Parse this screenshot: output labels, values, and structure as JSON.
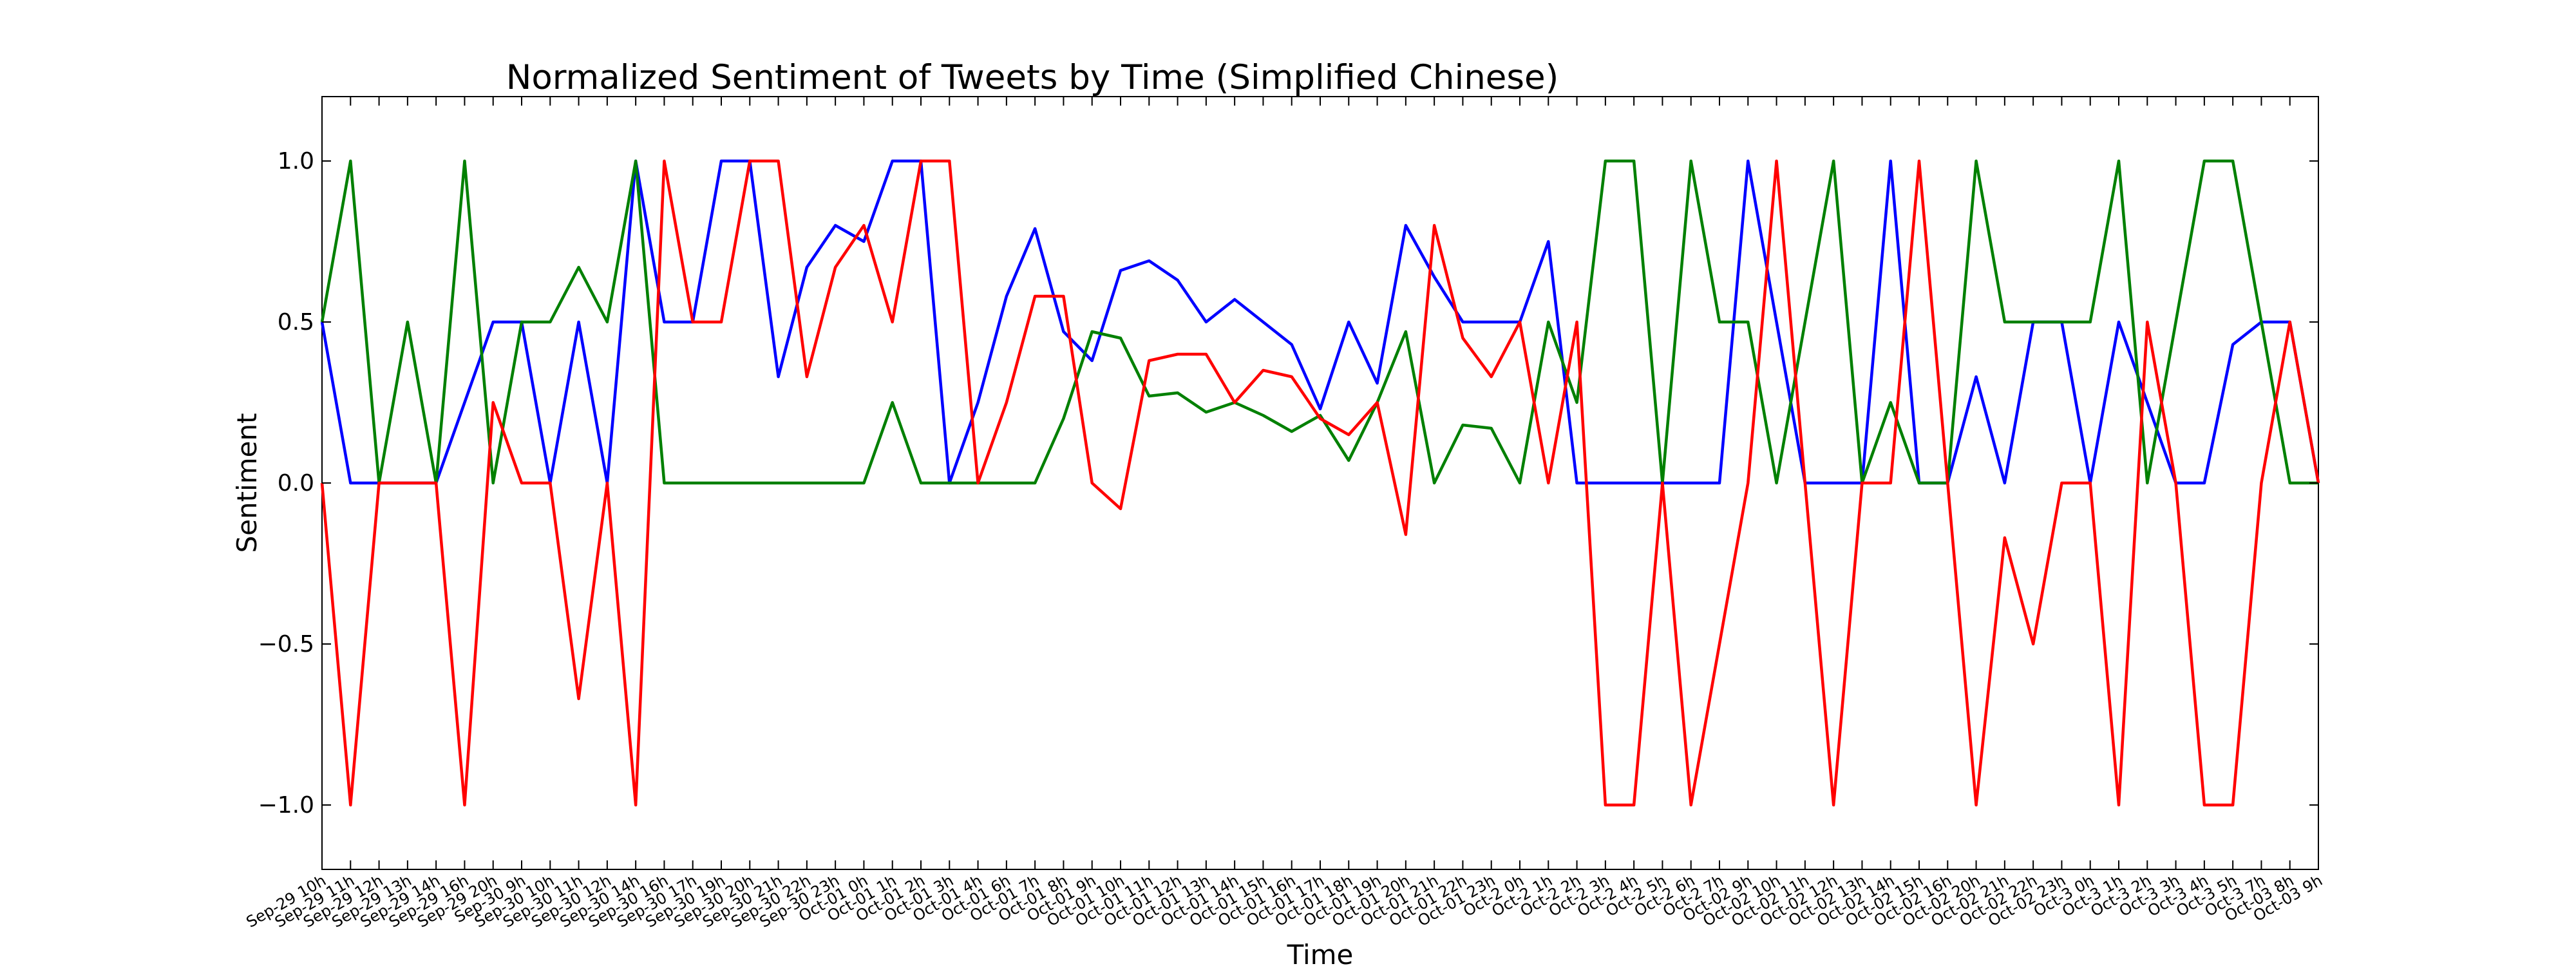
{
  "chart_data": {
    "type": "line",
    "title": "Normalized Sentiment of Tweets by Time (Simplified Chinese)",
    "xlabel": "Time",
    "ylabel": "Sentiment",
    "ylim": [
      -1.2,
      1.2
    ],
    "yticks": [
      -1.0,
      -0.5,
      0.0,
      0.5,
      1.0
    ],
    "ytick_labels": [
      "−1.0",
      "−0.5",
      "0.0",
      "0.5",
      "1.0"
    ],
    "grid": false,
    "categories": [
      "Sep-29 10h",
      "Sep-29 11h",
      "Sep-29 12h",
      "Sep-29 13h",
      "Sep-29 14h",
      "Sep-29 16h",
      "Sep-29 20h",
      "Sep-30 9h",
      "Sep-30 10h",
      "Sep-30 11h",
      "Sep-30 12h",
      "Sep-30 14h",
      "Sep-30 16h",
      "Sep-30 17h",
      "Sep-30 19h",
      "Sep-30 20h",
      "Sep-30 21h",
      "Sep-30 22h",
      "Sep-30 23h",
      "Oct-01 0h",
      "Oct-01 1h",
      "Oct-01 2h",
      "Oct-01 3h",
      "Oct-01 4h",
      "Oct-01 6h",
      "Oct-01 7h",
      "Oct-01 8h",
      "Oct-01 9h",
      "Oct-01 10h",
      "Oct-01 11h",
      "Oct-01 12h",
      "Oct-01 13h",
      "Oct-01 14h",
      "Oct-01 15h",
      "Oct-01 16h",
      "Oct-01 17h",
      "Oct-01 18h",
      "Oct-01 19h",
      "Oct-01 20h",
      "Oct-01 21h",
      "Oct-01 22h",
      "Oct-01 23h",
      "Oct-2 0h",
      "Oct-2 1h",
      "Oct-2 2h",
      "Oct-2 3h",
      "Oct-2 4h",
      "Oct-2 5h",
      "Oct-2 6h",
      "Oct-2 7h",
      "Oct-02 9h",
      "Oct-02 10h",
      "Oct-02 11h",
      "Oct-02 12h",
      "Oct-02 13h",
      "Oct-02 14h",
      "Oct-02 15h",
      "Oct-02 16h",
      "Oct-02 20h",
      "Oct-02 21h",
      "Oct-02 22h",
      "Oct-02 23h",
      "Oct-3 0h",
      "Oct-3 1h",
      "Oct-3 2h",
      "Oct-3 3h",
      "Oct-3 4h",
      "Oct-3 5h",
      "Oct-3 7h",
      "Oct-03 8h",
      "Oct-03 9h"
    ],
    "series": [
      {
        "color": "#0000ff",
        "values": [
          0.5,
          0,
          0,
          0,
          0,
          0.25,
          0.5,
          0.5,
          0,
          0.5,
          0,
          1,
          0.5,
          0.5,
          1,
          1,
          0.33,
          0.67,
          0.8,
          0.75,
          1,
          1,
          0,
          0.25,
          0.58,
          0.79,
          0.47,
          0.38,
          0.66,
          0.69,
          0.63,
          0.5,
          0.57,
          0.5,
          0.43,
          0.23,
          0.5,
          0.31,
          0.8,
          0.64,
          0.5,
          0.5,
          0.5,
          0.75,
          0,
          0,
          0,
          0,
          0,
          0,
          1,
          0.5,
          0,
          0,
          0,
          1,
          0,
          0,
          0.33,
          0,
          0.5,
          0.5,
          0,
          0.5,
          0.25,
          0,
          0,
          0.43,
          0.5,
          0.5,
          0
        ]
      },
      {
        "color": "#008000",
        "values": [
          0.5,
          1,
          0,
          0.5,
          0,
          1,
          0,
          0.5,
          0.5,
          0.67,
          0.5,
          1,
          0,
          0,
          0,
          0,
          0,
          0,
          0,
          0,
          0.25,
          0,
          0,
          0,
          0,
          0,
          0.2,
          0.47,
          0.45,
          0.27,
          0.28,
          0.22,
          0.25,
          0.21,
          0.16,
          0.21,
          0.07,
          0.25,
          0.47,
          0,
          0.18,
          0.17,
          0,
          0.5,
          0.25,
          1,
          1,
          0,
          1,
          0.5,
          0.5,
          0,
          0.5,
          1,
          0,
          0.25,
          0,
          0,
          1,
          0.5,
          0.5,
          0.5,
          0.5,
          1,
          0,
          0.5,
          1,
          1,
          0.5,
          0,
          0
        ]
      },
      {
        "color": "#ff0000",
        "values": [
          0,
          -1,
          0,
          0,
          0,
          -1,
          0.25,
          0,
          0,
          -0.67,
          0,
          -1,
          1,
          0.5,
          0.5,
          1,
          1,
          0.33,
          0.67,
          0.8,
          0.5,
          1,
          1,
          0,
          0.25,
          0.58,
          0.58,
          0,
          -0.08,
          0.38,
          0.4,
          0.4,
          0.25,
          0.35,
          0.33,
          0.2,
          0.15,
          0.25,
          -0.16,
          0.8,
          0.45,
          0.33,
          0.5,
          0,
          0.5,
          -1,
          -1,
          0,
          -1,
          -0.5,
          0,
          1,
          0,
          -1,
          0,
          0,
          1,
          0,
          -1,
          -0.17,
          -0.5,
          0,
          0,
          -1,
          0.5,
          0,
          -1,
          -1,
          0,
          0.5,
          0
        ]
      }
    ]
  }
}
